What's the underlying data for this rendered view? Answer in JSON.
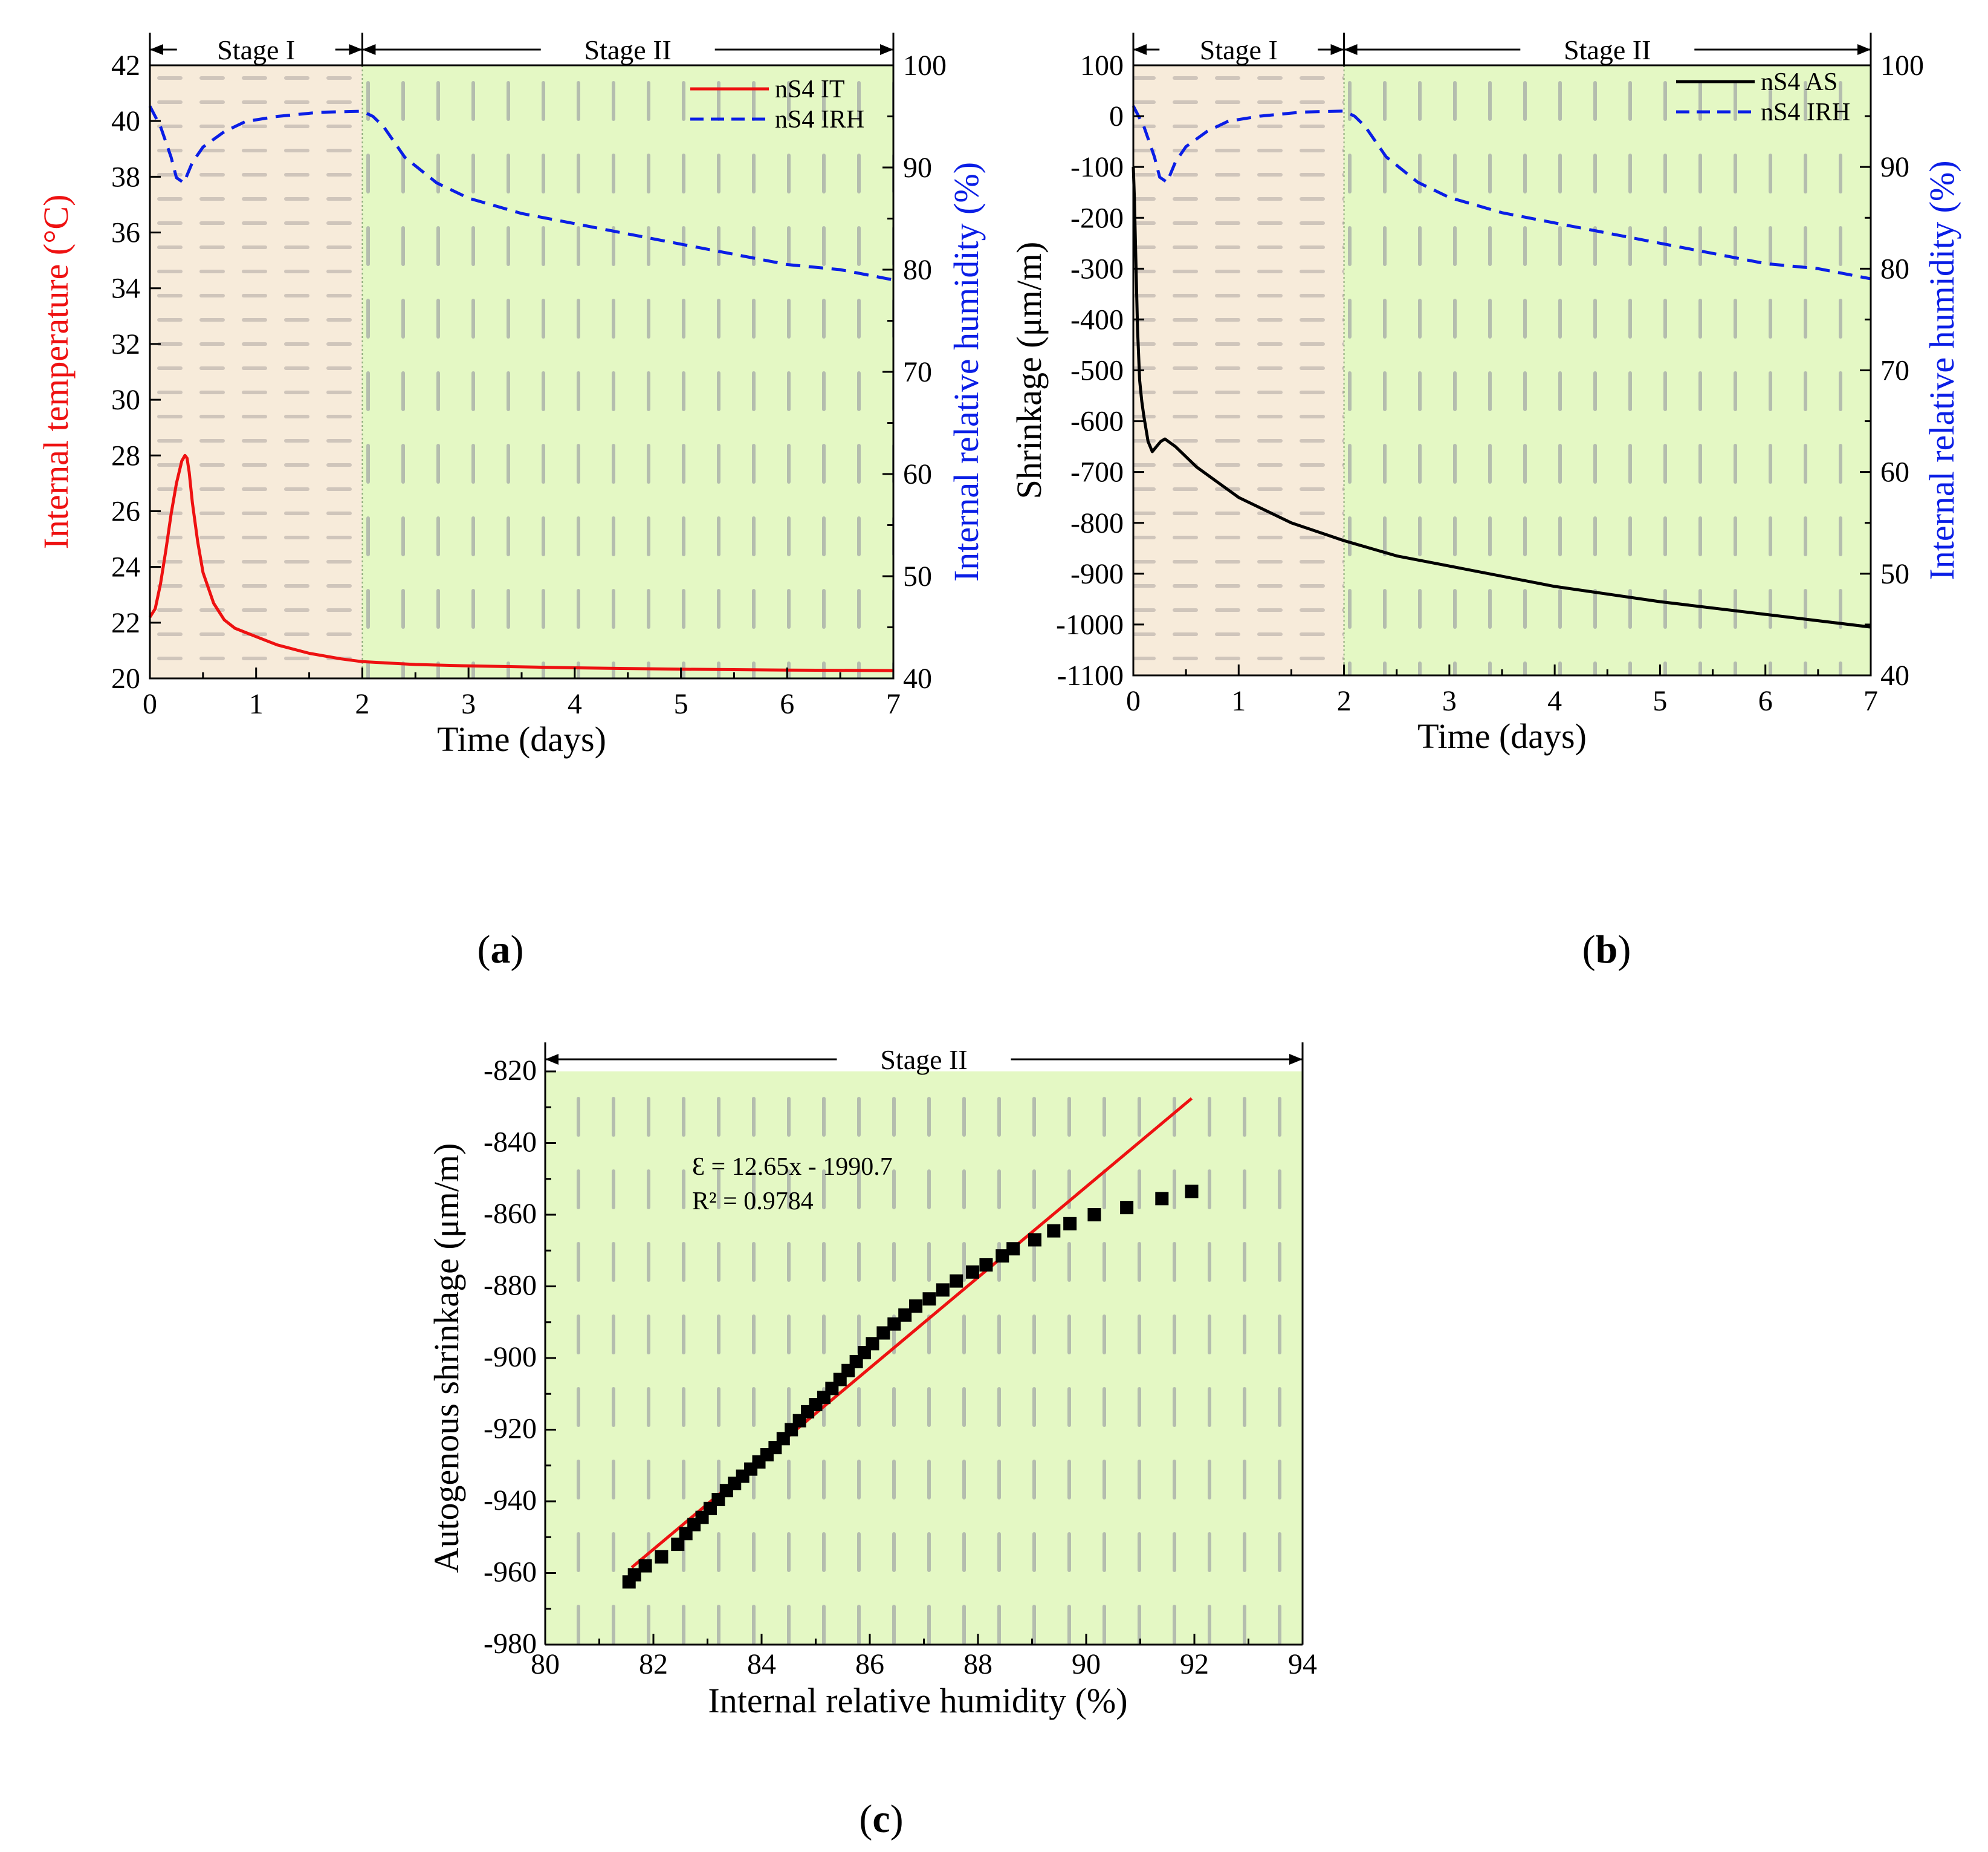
{
  "figure": {
    "label_a": "a",
    "label_b": "b",
    "label_c": "c"
  },
  "colors": {
    "it": "#ee1111",
    "irh": "#0a1ee6",
    "as": "#000000",
    "stage1_bg": "#f7ebda",
    "stage2_bg": "#e4f8c4",
    "dash1": "#cfc5bb",
    "dash2": "#b4bdae",
    "fit": "#ee1111",
    "marker": "#000000"
  },
  "chart_data": [
    {
      "id": "a",
      "type": "line",
      "xlabel": "Time (days)",
      "ylabel_left": "Internal temperature (°C)",
      "ylabel_right": "Internal relative humidity (%)",
      "xlim": [
        0,
        7
      ],
      "ylim_left": [
        20,
        42
      ],
      "ylim_right": [
        40,
        100
      ],
      "xticks": [
        "0",
        "1",
        "2",
        "3",
        "4",
        "5",
        "6",
        "7"
      ],
      "yticks_left": [
        "20",
        "22",
        "24",
        "26",
        "28",
        "30",
        "32",
        "34",
        "36",
        "38",
        "40",
        "42"
      ],
      "yticks_right": [
        "40",
        "50",
        "60",
        "70",
        "80",
        "90",
        "100"
      ],
      "stage1_label": "Stage I",
      "stage2_label": "Stage II",
      "stage_boundary": 2,
      "legend": [
        "nS4 IT",
        "nS4 IRH"
      ],
      "series": [
        {
          "name": "nS4 IT",
          "axis": "left",
          "style": "solid",
          "x": [
            0,
            0.05,
            0.1,
            0.15,
            0.2,
            0.25,
            0.3,
            0.33,
            0.35,
            0.37,
            0.4,
            0.45,
            0.5,
            0.6,
            0.7,
            0.8,
            1.0,
            1.2,
            1.5,
            1.8,
            2.0,
            2.5,
            3.0,
            4.0,
            5.0,
            6.0,
            7.0
          ],
          "y": [
            22.2,
            22.5,
            23.4,
            24.6,
            25.9,
            27.0,
            27.8,
            28.0,
            27.9,
            27.4,
            26.3,
            24.9,
            23.8,
            22.7,
            22.1,
            21.8,
            21.5,
            21.2,
            20.9,
            20.7,
            20.6,
            20.5,
            20.45,
            20.38,
            20.33,
            20.3,
            20.28
          ]
        },
        {
          "name": "nS4 IRH",
          "axis": "right",
          "style": "dashed",
          "x": [
            0,
            0.1,
            0.2,
            0.25,
            0.32,
            0.4,
            0.5,
            0.7,
            0.9,
            1.2,
            1.6,
            2.0,
            2.1,
            2.2,
            2.4,
            2.7,
            3.0,
            3.5,
            4.0,
            4.5,
            5.0,
            5.5,
            6.0,
            6.5,
            7.0
          ],
          "y": [
            96,
            94,
            91,
            89,
            88.5,
            90.5,
            92,
            93.5,
            94.5,
            95,
            95.4,
            95.5,
            95,
            94,
            91,
            88.5,
            87,
            85.5,
            84.5,
            83.5,
            82.5,
            81.5,
            80.5,
            80,
            79
          ]
        }
      ]
    },
    {
      "id": "b",
      "type": "line",
      "xlabel": "Time (days)",
      "ylabel_left": "Shrinkage (μm/m)",
      "ylabel_right": "Internal relative humidity (%)",
      "xlim": [
        0,
        7
      ],
      "ylim_left": [
        -1100,
        100
      ],
      "ylim_right": [
        40,
        100
      ],
      "xticks": [
        "0",
        "1",
        "2",
        "3",
        "4",
        "5",
        "6",
        "7"
      ],
      "yticks_left": [
        "100",
        "0",
        "-100",
        "-200",
        "-300",
        "-400",
        "-500",
        "-600",
        "-700",
        "-800",
        "-900",
        "-1000",
        "-1100"
      ],
      "yticks_right": [
        "40",
        "50",
        "60",
        "70",
        "80",
        "90",
        "100"
      ],
      "stage1_label": "Stage I",
      "stage2_label": "Stage II",
      "stage_boundary": 2,
      "legend": [
        "nS4 AS",
        "nS4 IRH"
      ],
      "series": [
        {
          "name": "nS4 AS",
          "axis": "left",
          "style": "solid",
          "x": [
            0,
            0.01,
            0.02,
            0.04,
            0.06,
            0.08,
            0.1,
            0.14,
            0.18,
            0.22,
            0.26,
            0.3,
            0.4,
            0.6,
            0.8,
            1.0,
            1.5,
            2.0,
            2.5,
            3.0,
            4.0,
            5.0,
            6.0,
            7.0
          ],
          "y": [
            -100,
            -160,
            -250,
            -420,
            -520,
            -560,
            -590,
            -640,
            -660,
            -650,
            -640,
            -635,
            -650,
            -690,
            -720,
            -750,
            -800,
            -835,
            -865,
            -885,
            -925,
            -955,
            -980,
            -1005
          ]
        },
        {
          "name": "nS4 IRH",
          "axis": "right",
          "style": "dashed",
          "x": [
            0,
            0.1,
            0.2,
            0.25,
            0.32,
            0.4,
            0.5,
            0.7,
            0.9,
            1.2,
            1.6,
            2.0,
            2.1,
            2.2,
            2.4,
            2.7,
            3.0,
            3.5,
            4.0,
            4.5,
            5.0,
            5.5,
            6.0,
            6.5,
            7.0
          ],
          "y": [
            96,
            94,
            91,
            89,
            88.5,
            90.5,
            92,
            93.5,
            94.5,
            95,
            95.4,
            95.5,
            95,
            94,
            91,
            88.5,
            87,
            85.5,
            84.5,
            83.5,
            82.5,
            81.5,
            80.5,
            80,
            79
          ]
        }
      ]
    },
    {
      "id": "c",
      "type": "scatter",
      "xlabel": "Internal relative humidity (%)",
      "ylabel": "Autogenous shrinkage (μm/m)",
      "xlim": [
        80,
        94
      ],
      "ylim": [
        -980,
        -820
      ],
      "xticks": [
        "80",
        "82",
        "84",
        "86",
        "88",
        "90",
        "92",
        "94"
      ],
      "yticks": [
        "-820",
        "-840",
        "-860",
        "-880",
        "-900",
        "-920",
        "-940",
        "-960",
        "-980"
      ],
      "stage_label": "Stage II",
      "equation": "Ɛ = 12.65x - 1990.7",
      "r2": "R² = 0.9784",
      "fit": {
        "slope": 12.65,
        "intercept": -1990.7,
        "x_range": [
          81.6,
          91.95
        ]
      },
      "series": [
        {
          "name": "measured",
          "x": [
            81.55,
            81.65,
            81.85,
            82.15,
            82.45,
            82.6,
            82.75,
            82.9,
            83.05,
            83.2,
            83.35,
            83.5,
            83.65,
            83.8,
            83.95,
            84.1,
            84.25,
            84.4,
            84.55,
            84.7,
            84.85,
            85.0,
            85.15,
            85.3,
            85.45,
            85.6,
            85.75,
            85.9,
            86.05,
            86.25,
            86.45,
            86.65,
            86.85,
            87.1,
            87.35,
            87.6,
            87.9,
            88.15,
            88.45,
            88.65,
            89.05,
            89.4,
            89.7,
            90.15,
            90.75,
            91.4,
            91.95
          ],
          "y": [
            -962.5,
            -960.5,
            -958,
            -955.5,
            -952,
            -949,
            -946.5,
            -944.5,
            -942,
            -939.5,
            -937,
            -935,
            -933,
            -931,
            -929,
            -927,
            -925,
            -922.5,
            -920,
            -917.5,
            -915,
            -913,
            -911,
            -908.5,
            -906,
            -903.5,
            -901,
            -898.5,
            -896,
            -893,
            -890.5,
            -888,
            -885.5,
            -883.5,
            -881,
            -878.5,
            -876,
            -874,
            -871.5,
            -869.5,
            -867,
            -864.5,
            -862.5,
            -860,
            -858,
            -855.5,
            -853.5
          ]
        }
      ]
    }
  ]
}
